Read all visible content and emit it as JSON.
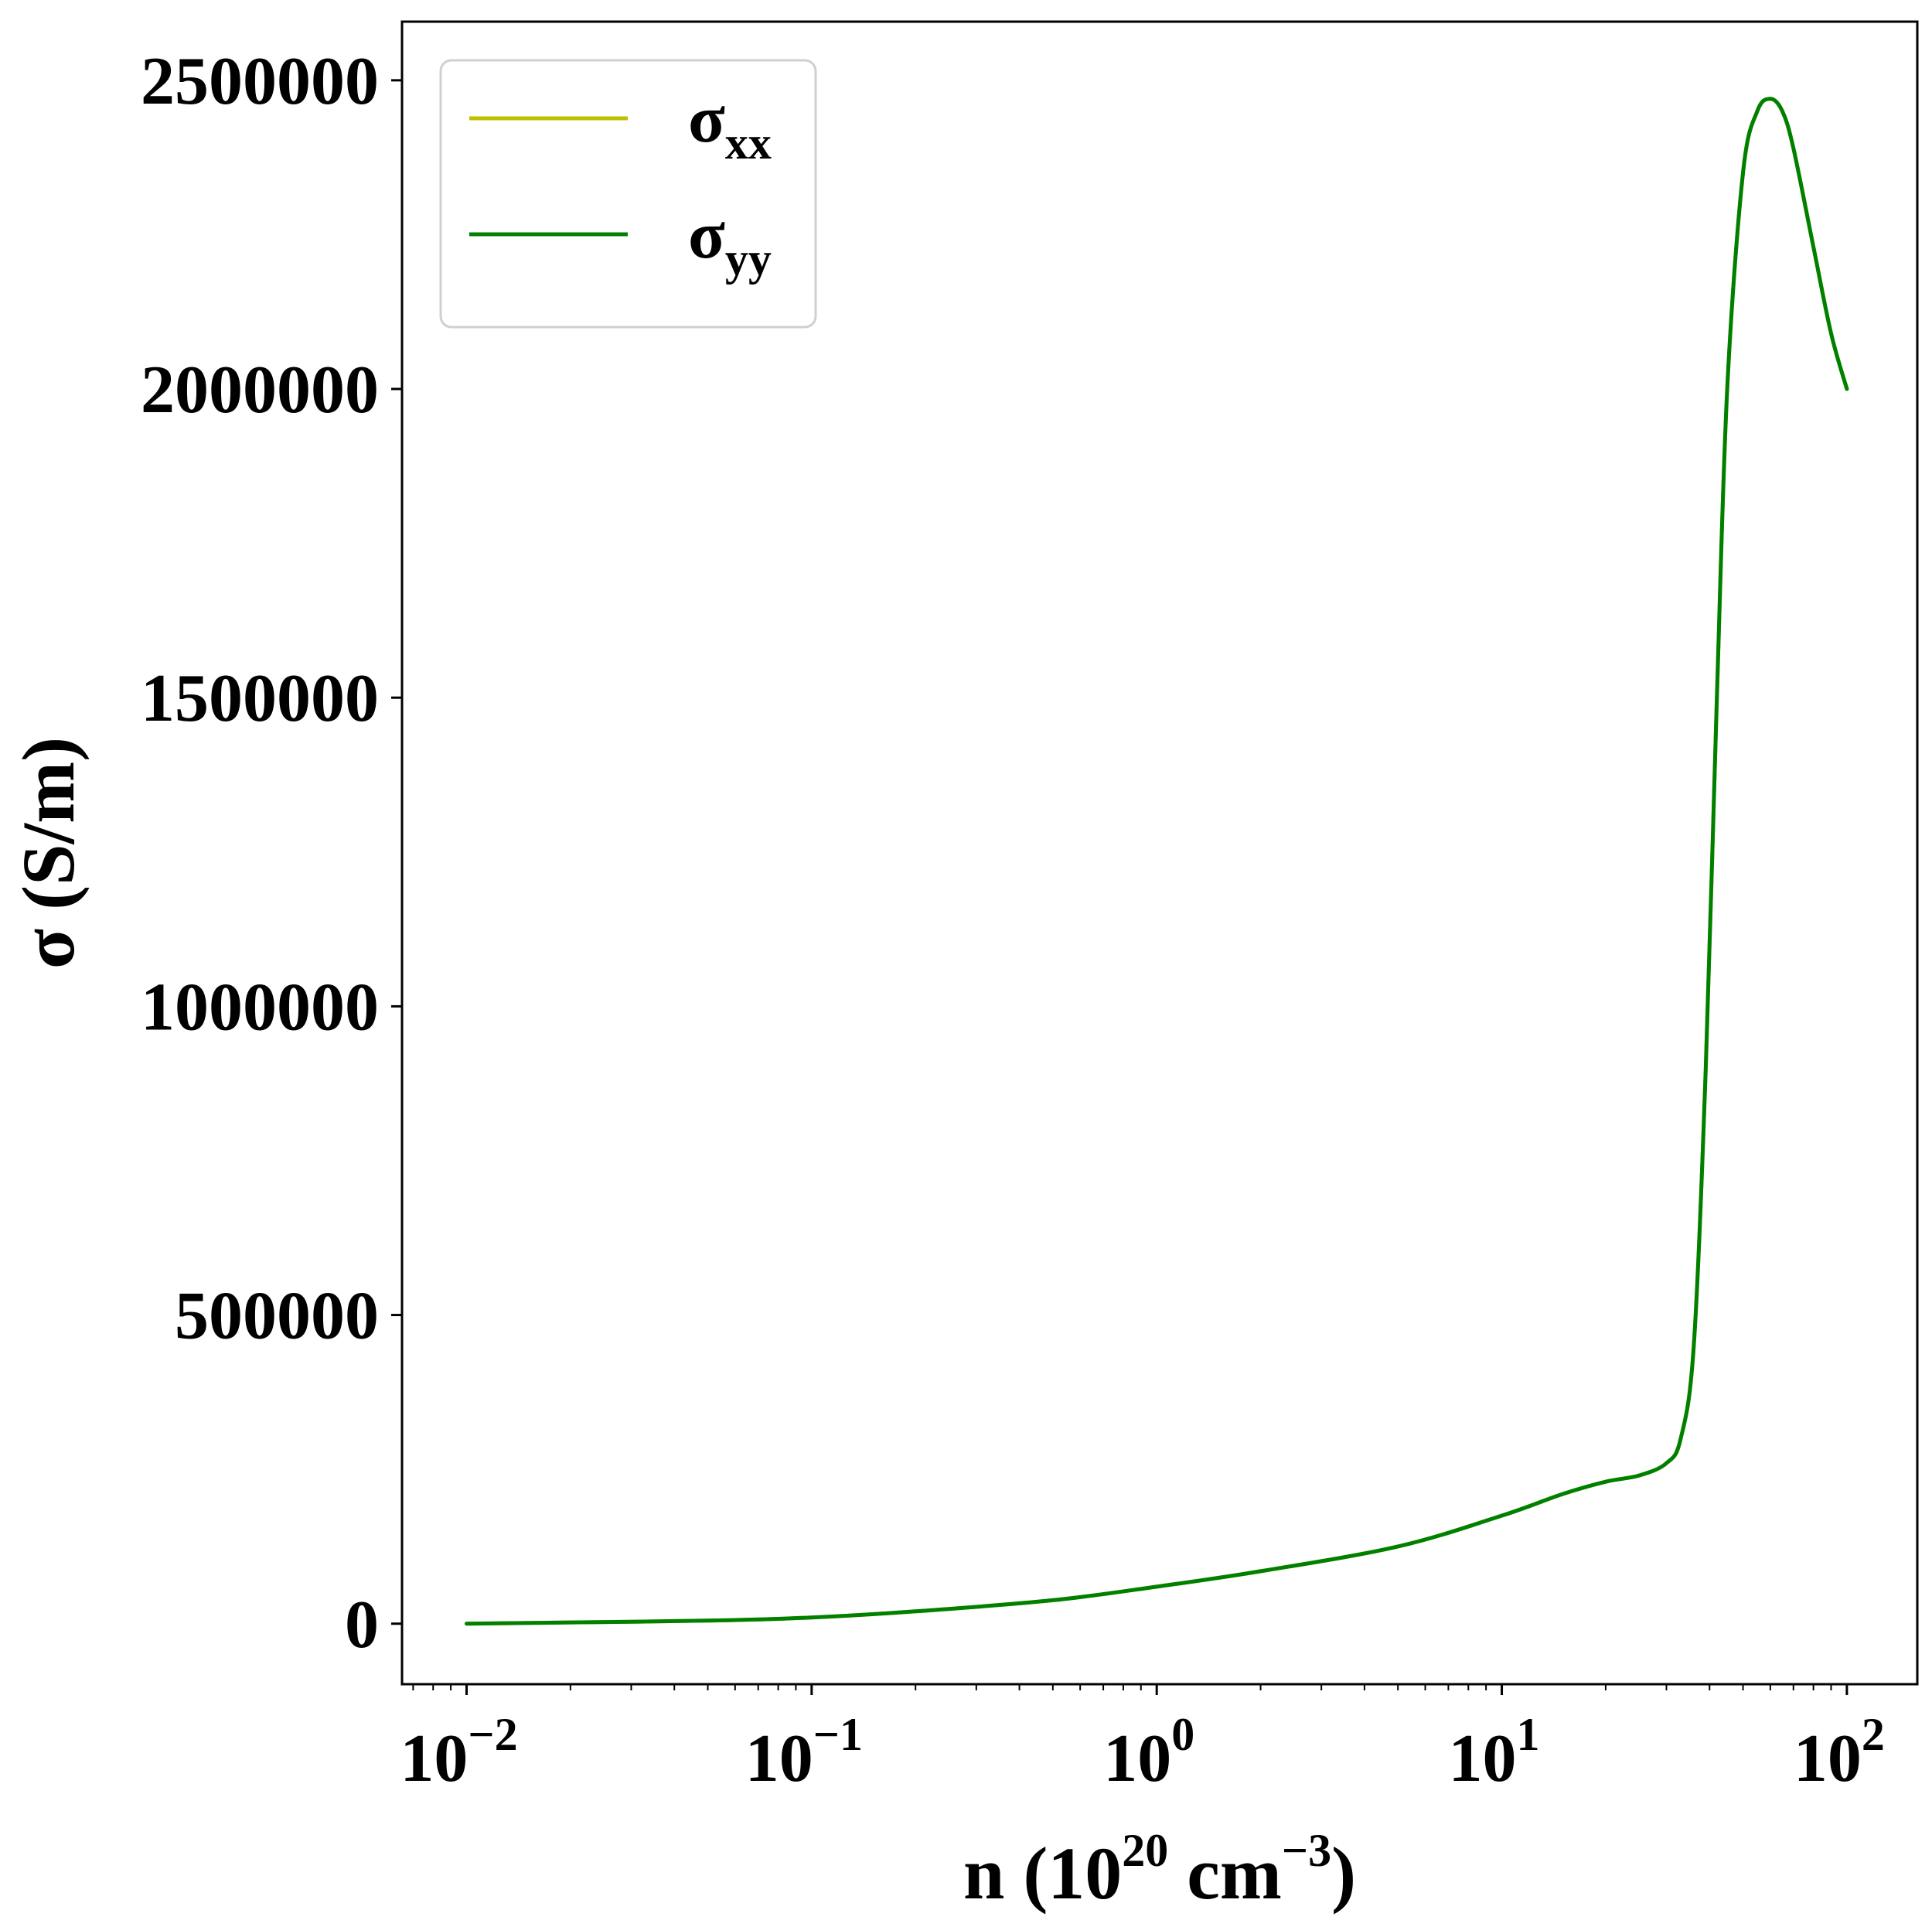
{
  "chart_data": {
    "type": "line",
    "xscale": "log",
    "xlim": [
      0.0065,
      160
    ],
    "ylim": [
      -98000,
      2595000
    ],
    "xlabel": {
      "main": "n (10",
      "sup1": "20",
      "mid": " cm",
      "sup2": "−3",
      "end": ")"
    },
    "ylabel": "σ (S/m)",
    "x_ticks": [
      {
        "value": 0.01,
        "base": "10",
        "exp": "−2"
      },
      {
        "value": 0.1,
        "base": "10",
        "exp": "−1"
      },
      {
        "value": 1,
        "base": "10",
        "exp": "0"
      },
      {
        "value": 10,
        "base": "10",
        "exp": "1"
      },
      {
        "value": 100,
        "base": "10",
        "exp": "2"
      }
    ],
    "y_ticks": [
      {
        "value": 0,
        "label": "0"
      },
      {
        "value": 500000,
        "label": "500000"
      },
      {
        "value": 1000000,
        "label": "1000000"
      },
      {
        "value": 1500000,
        "label": "1500000"
      },
      {
        "value": 2000000,
        "label": "2000000"
      },
      {
        "value": 2500000,
        "label": "2500000"
      }
    ],
    "grid": false,
    "legend_position": "upper-left",
    "legend": [
      {
        "symbol": "σ",
        "sub": "xx",
        "color": "#bfbf00"
      },
      {
        "symbol": "σ",
        "sub": "yy",
        "color": "#008000"
      }
    ],
    "series": [
      {
        "name": "σxx",
        "color": "#bfbf00",
        "x": [
          0.01,
          0.02,
          0.05,
          0.1,
          0.2,
          0.5,
          1,
          2,
          5,
          10,
          15,
          20,
          25,
          30,
          33,
          36,
          39,
          42,
          45,
          50,
          55,
          60,
          65,
          70,
          80,
          90,
          100
        ],
        "y": [
          0,
          2000,
          5000,
          10000,
          20000,
          38000,
          60000,
          85000,
          125000,
          175000,
          210000,
          230000,
          240000,
          260000,
          300000,
          450000,
          900000,
          1500000,
          2000000,
          2350000,
          2450000,
          2470000,
          2450000,
          2390000,
          2230000,
          2090000,
          2000000
        ]
      },
      {
        "name": "σyy",
        "color": "#008000",
        "x": [
          0.01,
          0.02,
          0.05,
          0.1,
          0.2,
          0.5,
          1,
          2,
          5,
          10,
          15,
          20,
          25,
          30,
          33,
          36,
          39,
          42,
          45,
          50,
          55,
          60,
          65,
          70,
          80,
          90,
          100
        ],
        "y": [
          0,
          2000,
          5000,
          10000,
          20000,
          38000,
          60000,
          85000,
          125000,
          175000,
          210000,
          230000,
          240000,
          260000,
          300000,
          450000,
          900000,
          1500000,
          2000000,
          2350000,
          2450000,
          2470000,
          2450000,
          2390000,
          2230000,
          2090000,
          2000000
        ]
      }
    ]
  }
}
